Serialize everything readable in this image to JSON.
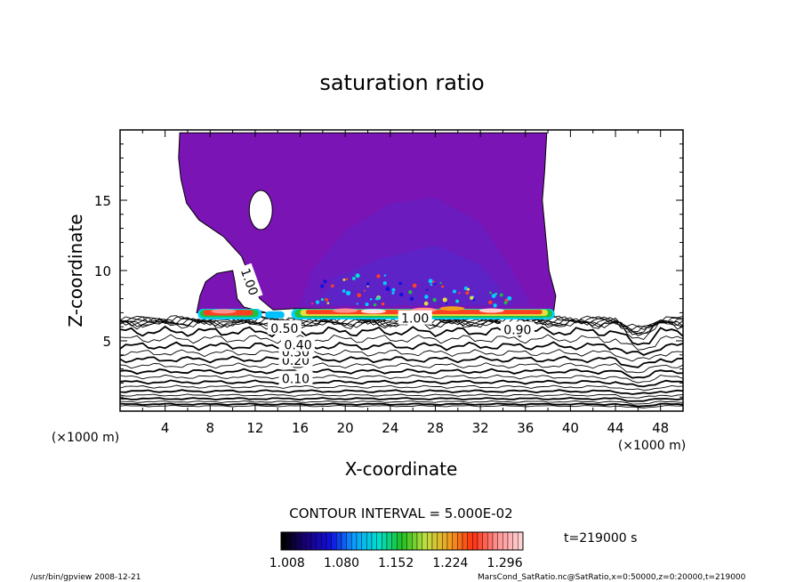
{
  "chart_data": {
    "type": "heatmap",
    "title": "saturation ratio",
    "xlabel": "X-coordinate",
    "ylabel": "Z-coordinate",
    "x_unit_left": "(×1000 m)",
    "x_unit_right": "(×1000 m)",
    "xlim": [
      0,
      50
    ],
    "ylim": [
      0,
      20
    ],
    "x_ticks": [
      4,
      8,
      12,
      16,
      20,
      24,
      28,
      32,
      36,
      40,
      44,
      48
    ],
    "y_ticks": [
      5,
      10,
      15
    ],
    "contour_interval_label": "CONTOUR INTERVAL = 5.000E-02",
    "time_label": "t=219000 s",
    "colorbar": {
      "ticks": [
        "1.008",
        "1.080",
        "1.152",
        "1.224",
        "1.296"
      ],
      "min": 1.0,
      "max": 1.32,
      "colors": [
        "#000000",
        "#1a0080",
        "#1010e0",
        "#0aa0ff",
        "#00e0d0",
        "#20c020",
        "#c0e040",
        "#f0a020",
        "#ff3010",
        "#ff9090",
        "#ffd0d0"
      ]
    },
    "contour_labels": [
      {
        "text": "0.10",
        "x": 15.6,
        "z": 2.3
      },
      {
        "text": "0.20",
        "x": 15.6,
        "z": 3.6
      },
      {
        "text": "0.30",
        "x": 15.6,
        "z": 4.2
      },
      {
        "text": "0.40",
        "x": 15.8,
        "z": 4.7
      },
      {
        "text": "0.50",
        "x": 14.6,
        "z": 5.9
      },
      {
        "text": "0.90",
        "x": 35.3,
        "z": 5.8
      },
      {
        "text": "1.00",
        "x": 26.2,
        "z": 6.6
      },
      {
        "text": "1.00",
        "x": 11.5,
        "z": 9.2
      }
    ],
    "thin_contour_levels": [
      0.05,
      0.15,
      0.25,
      0.35,
      0.45,
      0.55,
      0.6,
      0.65,
      0.7,
      0.75,
      0.8,
      0.85
    ],
    "supersaturated_region": {
      "x_range": [
        5.2,
        39.0
      ],
      "z_range": [
        6.5,
        19.8
      ]
    },
    "footer_left": "/usr/bin/gpview   2008-12-21",
    "footer_right": "MarsCond_SatRatio.nc@SatRatio,x=0:50000,z=0:20000,t=219000"
  }
}
